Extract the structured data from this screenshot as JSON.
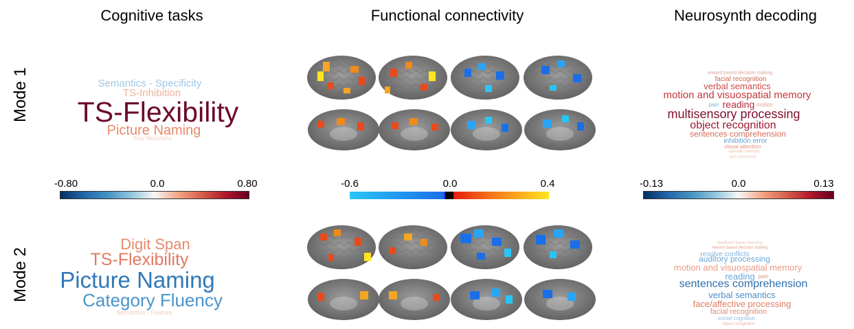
{
  "headers": {
    "cognitive": "Cognitive tasks",
    "connectivity": "Functional connectivity",
    "neurosynth": "Neurosynth decoding"
  },
  "rows": {
    "mode1": "Mode 1",
    "mode2": "Mode 2"
  },
  "colorbars": {
    "cognitive": {
      "min": "-0.80",
      "mid": "0.0",
      "max": "0.80"
    },
    "connectivity": {
      "min": "-0.6",
      "mid": "0.0",
      "max": "0.4"
    },
    "neurosynth": {
      "min": "-0.13",
      "mid": "0.0",
      "max": "0.13"
    }
  },
  "mode1": {
    "tasks": [
      {
        "text": "Semantics - Specificity",
        "color": "#9cc7e3"
      },
      {
        "text": "TS-Inhibition",
        "color": "#eab39a"
      },
      {
        "text": "TS-Flexibility",
        "color": "#6b0a2a"
      },
      {
        "text": "Picture Naming",
        "color": "#e5896a"
      },
      {
        "text": "Four Mountains",
        "color": "#f4cfc0"
      }
    ],
    "terms": [
      {
        "text": "reward based decision making",
        "color": "#d8a898"
      },
      {
        "text": "facial recognition",
        "color": "#cc6a55"
      },
      {
        "text": "verbal semantics",
        "color": "#c94a45"
      },
      {
        "text": "motion and visuospatial memory",
        "color": "#c5363c"
      },
      {
        "text": "reading",
        "color": "#b52a3a"
      },
      {
        "text": "pain",
        "color": "#7ab0d8"
      },
      {
        "text": "motion",
        "color": "#e0a08a"
      },
      {
        "text": "multisensory processing",
        "color": "#7d0f2e"
      },
      {
        "text": "object recognition",
        "color": "#9a1a33"
      },
      {
        "text": "sentences comprehension",
        "color": "#d76b5a"
      },
      {
        "text": "inhibition error",
        "color": "#5f9ed0"
      },
      {
        "text": "visual attention",
        "color": "#e0917a"
      },
      {
        "text": "episodic memory",
        "color": "#eabaa8"
      },
      {
        "text": "eye movement",
        "color": "#eec8b8"
      }
    ]
  },
  "mode2": {
    "tasks": [
      {
        "text": "Digit Span",
        "color": "#e78a6c"
      },
      {
        "text": "TS-Flexibility",
        "color": "#e07a60"
      },
      {
        "text": "Picture Naming",
        "color": "#2f78b8"
      },
      {
        "text": "Category Fluency",
        "color": "#4a94cc"
      },
      {
        "text": "Semantics - Feature",
        "color": "#f2cfc0"
      }
    ],
    "terms": [
      {
        "text": "feedback based learning",
        "color": "#eac2b2"
      },
      {
        "text": "reward based decision making",
        "color": "#e0a490"
      },
      {
        "text": "resolve conflicts",
        "color": "#7fb3dc"
      },
      {
        "text": "auditory processing",
        "color": "#6aa6d6"
      },
      {
        "text": "motion and visuospatial memory",
        "color": "#ea9c82"
      },
      {
        "text": "reading",
        "color": "#6aa6d6"
      },
      {
        "text": "pain",
        "color": "#e0967f"
      },
      {
        "text": "sentences comprehension",
        "color": "#2e6fae"
      },
      {
        "text": "verbal semantics",
        "color": "#4b8fc8"
      },
      {
        "text": "face/affective processing",
        "color": "#e07c62"
      },
      {
        "text": "facial recognition",
        "color": "#e08d73"
      },
      {
        "text": "social cognition",
        "color": "#92bfe0"
      },
      {
        "text": "object recognition",
        "color": "#eab2a0"
      }
    ]
  }
}
